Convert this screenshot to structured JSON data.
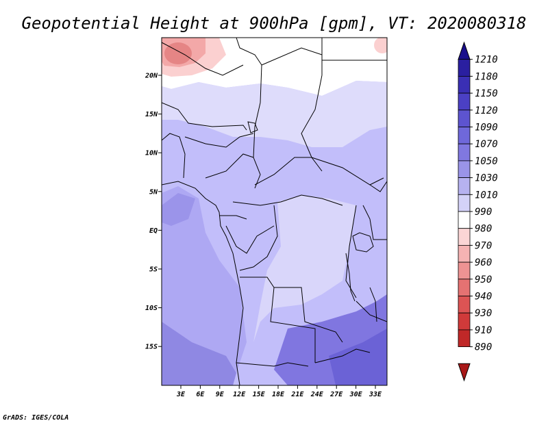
{
  "title": "Geopotential Height at 900hPa [gpm], VT: 2020080318",
  "credit": "GrADS: IGES/COLA",
  "map": {
    "lon_labels": [
      "3E",
      "6E",
      "9E",
      "12E",
      "15E",
      "18E",
      "21E",
      "24E",
      "27E",
      "30E",
      "33E"
    ],
    "lat_labels": [
      "20N",
      "15N",
      "10N",
      "5N",
      "EQ",
      "5S",
      "10S",
      "15S"
    ]
  },
  "colorbar": {
    "labels": [
      "1210",
      "1180",
      "1150",
      "1120",
      "1090",
      "1070",
      "1050",
      "1030",
      "1010",
      "990",
      "980",
      "970",
      "960",
      "950",
      "940",
      "930",
      "910",
      "890"
    ],
    "colors": [
      "#1a0f8c",
      "#2a1fa0",
      "#3a2fb4",
      "#4b40c4",
      "#5d54d0",
      "#6f68da",
      "#8078e0",
      "#9a94e8",
      "#b6b2f0",
      "#d4d2f8",
      "#ffffff",
      "#fbd5d5",
      "#f5b3b3",
      "#ee9393",
      "#e57272",
      "#dc5454",
      "#d03a3a",
      "#c02828",
      "#a81818"
    ]
  }
}
